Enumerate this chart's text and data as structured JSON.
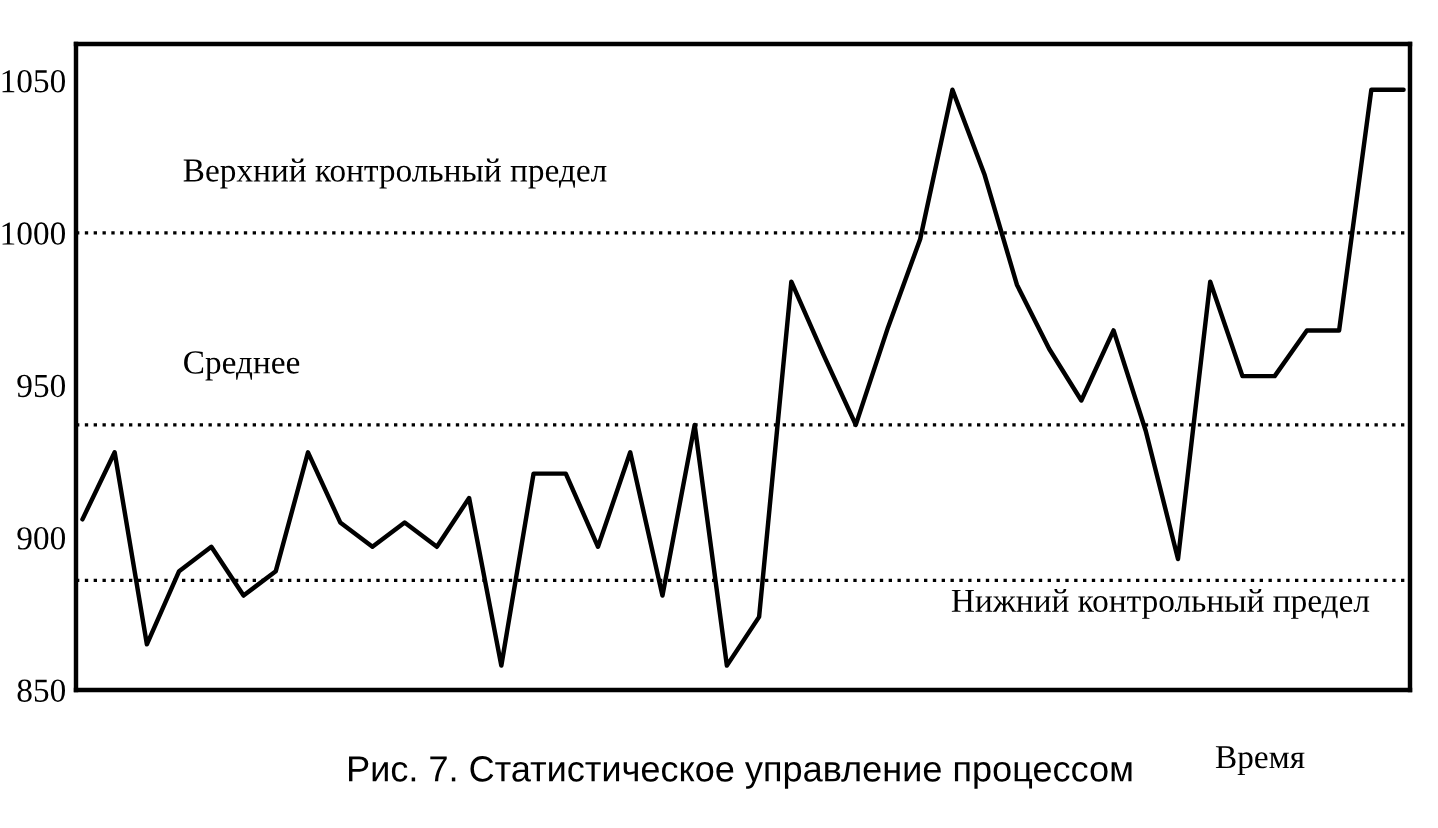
{
  "chart_data": {
    "type": "line",
    "title": "Рис. 7. Статистическое управление процессом",
    "xlabel": "Время",
    "categories": [
      null,
      null,
      null,
      null,
      null,
      null,
      null,
      null,
      null,
      null,
      null,
      null,
      null,
      null,
      null,
      null,
      null,
      null,
      null,
      null,
      null,
      null,
      null,
      null,
      null,
      null,
      null,
      null,
      null,
      null,
      null,
      null,
      null,
      null,
      null,
      null,
      null,
      null,
      null,
      null,
      null,
      null
    ],
    "series": [
      {
        "color": "#000000",
        "values": [
          906,
          928,
          865,
          889,
          897,
          881,
          889,
          928,
          905,
          897,
          905,
          897,
          913,
          858,
          921,
          921,
          897,
          928,
          881,
          937,
          858,
          874,
          984,
          960,
          937,
          969,
          998,
          1047,
          1019,
          983,
          962,
          945,
          968,
          935,
          893,
          984,
          953,
          953,
          968,
          968,
          1047,
          1047
        ]
      }
    ],
    "ylim": [
      850,
      1062
    ],
    "yticks": [
      850,
      900,
      950,
      1000,
      1050
    ],
    "ref_lines": [
      {
        "axis": "y",
        "value": 1000,
        "label": "Верхний контрольный предел",
        "color": "#000000",
        "line_style": "dotted"
      },
      {
        "axis": "y",
        "value": 937,
        "label": "Среднее",
        "color": "#000000",
        "line_style": "dotted"
      },
      {
        "axis": "y",
        "value": 886,
        "label": "Нижний контрольный предел",
        "color": "#000000",
        "line_style": "dotted"
      }
    ],
    "grid": false,
    "legend": false,
    "marker": "none",
    "line_style": "solid",
    "tick_labels": "y"
  }
}
